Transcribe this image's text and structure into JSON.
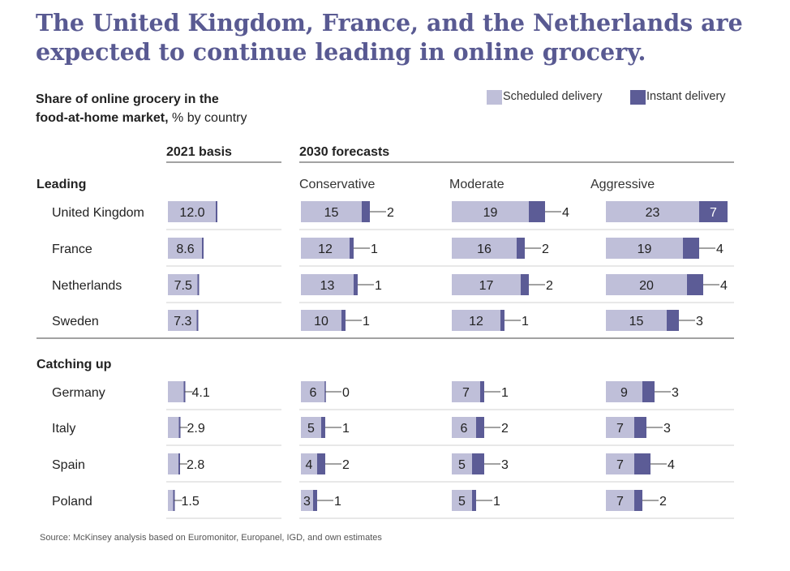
{
  "title_lines": [
    "The United Kingdom, France, and the Netherlands are",
    "expected to continue leading in online grocery."
  ],
  "subtitle": {
    "line1_bold": "Share of online grocery in the",
    "line2_bold": "food-at-home market,",
    "line2_rest": " % by country"
  },
  "legend": [
    {
      "label": "Scheduled delivery",
      "color": "#bfbfd9"
    },
    {
      "label": "Instant delivery",
      "color": "#5c5c96"
    }
  ],
  "source": "Source: McKinsey analysis based on Euromonitor, Europanel, IGD, and own estimates",
  "chart_data": {
    "type": "bar",
    "stacked": true,
    "group_headers": [
      "2021 basis",
      "2030 forecasts"
    ],
    "scenarios": [
      "Conservative",
      "Moderate",
      "Aggressive"
    ],
    "columns": [
      "2021 basis",
      "Conservative",
      "Moderate",
      "Aggressive"
    ],
    "series_names": [
      "Scheduled delivery",
      "Instant delivery"
    ],
    "groups": [
      {
        "name": "Leading",
        "rows": [
          {
            "country": "United Kingdom",
            "basis": "12.0",
            "forecasts": [
              [
                15,
                2
              ],
              [
                19,
                4
              ],
              [
                23,
                7
              ]
            ]
          },
          {
            "country": "France",
            "basis": "8.6",
            "forecasts": [
              [
                12,
                1
              ],
              [
                16,
                2
              ],
              [
                19,
                4
              ]
            ]
          },
          {
            "country": "Netherlands",
            "basis": "7.5",
            "forecasts": [
              [
                13,
                1
              ],
              [
                17,
                2
              ],
              [
                20,
                4
              ]
            ]
          },
          {
            "country": "Sweden",
            "basis": "7.3",
            "forecasts": [
              [
                10,
                1
              ],
              [
                12,
                1
              ],
              [
                15,
                3
              ]
            ]
          }
        ]
      },
      {
        "name": "Catching up",
        "rows": [
          {
            "country": "Germany",
            "basis": "4.1",
            "forecasts": [
              [
                6,
                0
              ],
              [
                7,
                1
              ],
              [
                9,
                3
              ]
            ]
          },
          {
            "country": "Italy",
            "basis": "2.9",
            "forecasts": [
              [
                5,
                1
              ],
              [
                6,
                2
              ],
              [
                7,
                3
              ]
            ]
          },
          {
            "country": "Spain",
            "basis": "2.8",
            "forecasts": [
              [
                4,
                2
              ],
              [
                5,
                3
              ],
              [
                7,
                4
              ]
            ]
          },
          {
            "country": "Poland",
            "basis": "1.5",
            "forecasts": [
              [
                3,
                1
              ],
              [
                5,
                1
              ],
              [
                7,
                2
              ]
            ]
          }
        ]
      }
    ],
    "colors": {
      "scheduled": "#bfbfd9",
      "instant": "#5c5c96",
      "basis_line": "#5c5c96",
      "rule": "#444444",
      "separator": "#d0d0d0"
    }
  }
}
